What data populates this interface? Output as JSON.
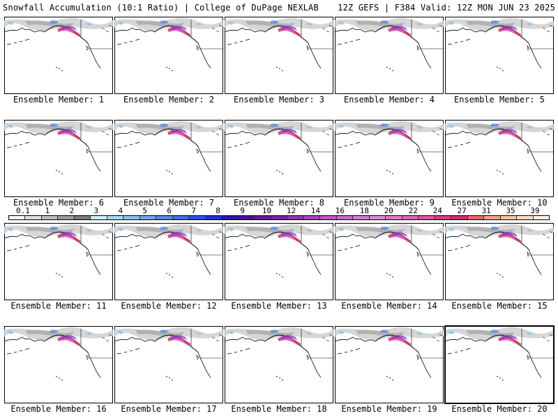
{
  "header": {
    "title_left": "Snowfall Accumulation (10:1 Ratio) | College of DuPage NEXLAB",
    "title_right": "12Z GEFS | F384 Valid: 12Z MON JUN 23 2025"
  },
  "colorbar": {
    "labels": [
      "0.1",
      "1",
      "2",
      "3",
      "4",
      "5",
      "6",
      "7",
      "8",
      "9",
      "10",
      "12",
      "14",
      "16",
      "18",
      "20",
      "22",
      "24",
      "27",
      "31",
      "35",
      "39"
    ],
    "colors": [
      "#f4f4f4",
      "#dcdcdc",
      "#bcbcbc",
      "#9a9a9a",
      "#7a7a7a",
      "#c8f0f8",
      "#9cdcf0",
      "#86c0ee",
      "#6ea4ea",
      "#5888e6",
      "#426ce4",
      "#2c50e0",
      "#1d36c8",
      "#2a16a8",
      "#4c10a0",
      "#6418a0",
      "#7c22a8",
      "#9630b0",
      "#aa40bc",
      "#be54c8",
      "#cc66d0",
      "#d678d4",
      "#e088d8",
      "#e478c4",
      "#e066b0",
      "#dc529c",
      "#d43e86",
      "#cc2e70",
      "#e46a6a",
      "#f0a080",
      "#f6c49e",
      "#fbdcc0",
      "#fef0e0"
    ]
  },
  "panels": [
    {
      "label": "Ensemble Member: 1"
    },
    {
      "label": "Ensemble Member: 2"
    },
    {
      "label": "Ensemble Member: 3"
    },
    {
      "label": "Ensemble Member: 4"
    },
    {
      "label": "Ensemble Member: 5"
    },
    {
      "label": "Ensemble Member: 6"
    },
    {
      "label": "Ensemble Member: 7"
    },
    {
      "label": "Ensemble Member: 8"
    },
    {
      "label": "Ensemble Member: 9"
    },
    {
      "label": "Ensemble Member: 10"
    },
    {
      "label": "Ensemble Member: 11"
    },
    {
      "label": "Ensemble Member: 12"
    },
    {
      "label": "Ensemble Member: 13"
    },
    {
      "label": "Ensemble Member: 14"
    },
    {
      "label": "Ensemble Member: 15"
    },
    {
      "label": "Ensemble Member: 16"
    },
    {
      "label": "Ensemble Member: 17"
    },
    {
      "label": "Ensemble Member: 18"
    },
    {
      "label": "Ensemble Member: 19"
    },
    {
      "label": "Ensemble Member: 20"
    }
  ]
}
